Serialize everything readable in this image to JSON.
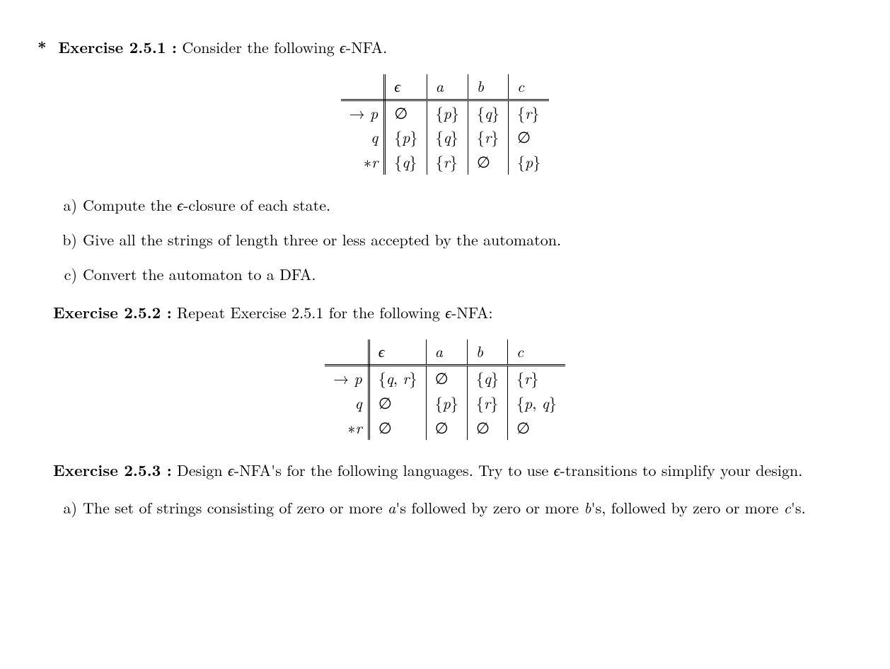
{
  "ex251": {
    "star": "*",
    "label": "Exercise 2.5.1 :",
    "intro_before_eps": " Consider the following ",
    "eps": "ϵ",
    "intro_after_eps": "-NFA.",
    "table": {
      "headers": [
        "",
        "ϵ",
        "a",
        "b",
        "c"
      ],
      "rows": [
        {
          "label": "→ p",
          "cells": [
            "∅",
            "{p}",
            "{q}",
            "{r}"
          ]
        },
        {
          "label": "q",
          "cells": [
            "{p}",
            "{q}",
            "{r}",
            "∅"
          ]
        },
        {
          "label": "∗r",
          "cells": [
            "{q}",
            "{r}",
            "∅",
            "{p}"
          ]
        }
      ]
    },
    "parts": {
      "a": {
        "marker": "a)",
        "before": "Compute the ",
        "eps": "ϵ",
        "after": "-closure of each state."
      },
      "b": {
        "marker": "b)",
        "text": "Give all the strings of length three or less accepted by the automaton."
      },
      "c": {
        "marker": "c)",
        "text": "Convert the automaton to a DFA."
      }
    }
  },
  "ex252": {
    "label": "Exercise 2.5.2 :",
    "intro_before_eps": " Repeat Exercise 2.5.1 for the following ",
    "eps": "ϵ",
    "intro_after_eps": "-NFA:",
    "table": {
      "headers": [
        "",
        "ϵ",
        "a",
        "b",
        "c"
      ],
      "rows": [
        {
          "label": "→ p",
          "cells": [
            "{q, r}",
            "∅",
            "{q}",
            "{r}"
          ]
        },
        {
          "label": "q",
          "cells": [
            "∅",
            "{p}",
            "{r}",
            "{p, q}"
          ]
        },
        {
          "label": "∗r",
          "cells": [
            "∅",
            "∅",
            "∅",
            "∅"
          ]
        }
      ]
    }
  },
  "ex253": {
    "label": "Exercise 2.5.3 :",
    "intro_seg1": " Design ",
    "eps1": "ϵ",
    "intro_seg2": "-NFA's for the following languages. Try to use ",
    "eps2": "ϵ",
    "intro_seg3": "-transitions to simplify your design.",
    "parts": {
      "a": {
        "marker": "a)",
        "seg1": "The set of strings consisting of zero or more ",
        "a": "a",
        "seg2": "'s followed by zero or more ",
        "b": "b",
        "seg3": "'s, followed by zero or more ",
        "c": "c",
        "seg4": "'s."
      }
    }
  }
}
